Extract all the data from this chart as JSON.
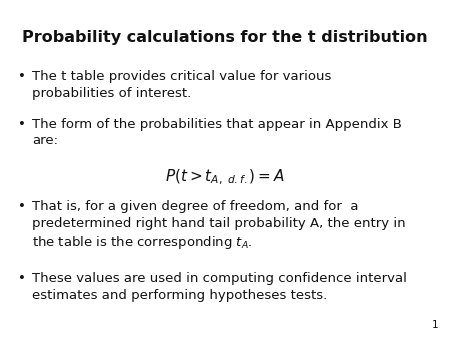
{
  "title": "Probability calculations for the t distribution",
  "background_color": "#ffffff",
  "title_fontsize": 11.5,
  "title_fontweight": "bold",
  "bullet_fontsize": 9.5,
  "formula_fontsize": 11,
  "page_number": "1",
  "bullets": [
    "The t table provides critical value for various\nprobabilities of interest.",
    "The form of the probabilities that appear in Appendix B\nare:",
    "That is, for a given degree of freedom, and for  a\npredetermined right hand tail probability A, the entry in\nthe table is the corresponding $t_A$.",
    "These values are used in computing confidence interval\nestimates and performing hypotheses tests."
  ],
  "formula": "$P(t > t_{A,\\ d.f.}) = A$",
  "text_color": "#111111",
  "bullet_char": "•",
  "font_family": "Arial"
}
